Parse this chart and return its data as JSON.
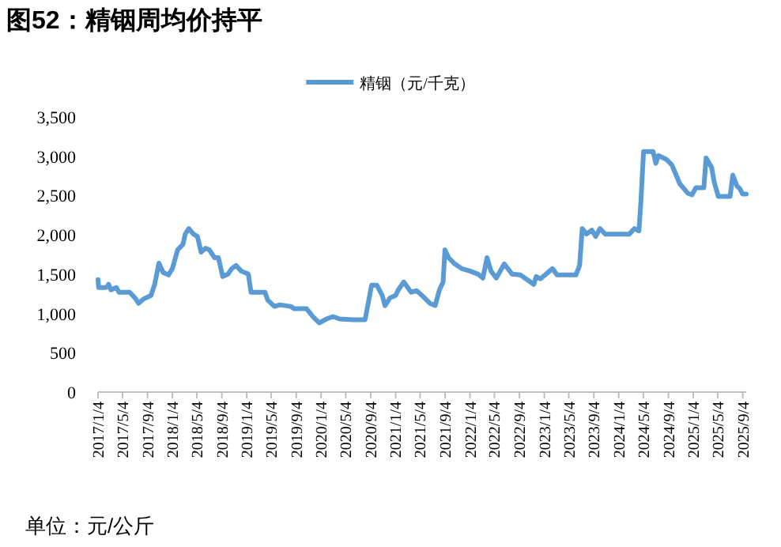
{
  "chart_data": {
    "type": "line",
    "title": "图52：精铟周均价持平",
    "annotations": [
      "单位：元/公斤"
    ],
    "legend": "top",
    "grid": false,
    "x": [
      "2017-01-04",
      "2017-01-07",
      "2017-02-13",
      "2017-02-25",
      "2017-03-08",
      "2017-04-04",
      "2017-04-17",
      "2017-06-08",
      "2017-07-04",
      "2017-07-22",
      "2017-08-13",
      "2017-09-21",
      "2017-10-09",
      "2017-10-30",
      "2017-11-20",
      "2017-12-16",
      "2018-01-04",
      "2018-01-30",
      "2018-02-25",
      "2018-03-08",
      "2018-03-26",
      "2018-04-17",
      "2018-05-07",
      "2018-05-25",
      "2018-06-16",
      "2018-07-04",
      "2018-07-30",
      "2018-08-18",
      "2018-09-08",
      "2018-10-04",
      "2018-10-22",
      "2018-11-13",
      "2018-12-08",
      "2019-01-12",
      "2019-01-25",
      "2019-04-04",
      "2019-04-17",
      "2019-05-20",
      "2019-06-16",
      "2019-08-07",
      "2019-08-25",
      "2019-10-25",
      "2019-11-25",
      "2019-12-26",
      "2020-01-30",
      "2020-03-03",
      "2020-04-04",
      "2020-06-08",
      "2020-08-07",
      "2020-09-08",
      "2020-10-04",
      "2020-10-30",
      "2020-11-13",
      "2020-12-08",
      "2021-01-04",
      "2021-01-17",
      "2021-02-13",
      "2021-03-21",
      "2021-04-17",
      "2021-05-13",
      "2021-06-21",
      "2021-07-17",
      "2021-08-07",
      "2021-08-25",
      "2021-09-03",
      "2021-09-21",
      "2021-10-17",
      "2021-11-25",
      "2022-01-04",
      "2022-02-13",
      "2022-03-08",
      "2022-03-29",
      "2022-04-17",
      "2022-05-13",
      "2022-06-21",
      "2022-07-30",
      "2022-09-08",
      "2022-10-17",
      "2022-11-13",
      "2022-11-25",
      "2022-12-16",
      "2023-02-13",
      "2023-03-08",
      "2023-06-08",
      "2023-06-26",
      "2023-07-09",
      "2023-07-30",
      "2023-08-25",
      "2023-09-13",
      "2023-10-04",
      "2023-10-30",
      "2024-02-25",
      "2024-03-21",
      "2024-04-12",
      "2024-04-22",
      "2024-05-05",
      "2024-06-21",
      "2024-07-04",
      "2024-07-17",
      "2024-08-25",
      "2024-09-21",
      "2024-10-30",
      "2024-12-08",
      "2024-12-29",
      "2025-01-17",
      "2025-02-25",
      "2025-03-08",
      "2025-04-04",
      "2025-04-17",
      "2025-05-07",
      "2025-07-04",
      "2025-07-17",
      "2025-08-07",
      "2025-08-20",
      "2025-09-03",
      "2025-09-21"
    ],
    "series": [
      {
        "name": "精铟（元/千克）",
        "color": "#5b9bd5",
        "values": [
          1430,
          1330,
          1330,
          1370,
          1300,
          1330,
          1270,
          1270,
          1200,
          1130,
          1180,
          1230,
          1370,
          1640,
          1520,
          1490,
          1570,
          1810,
          1880,
          2010,
          2080,
          2010,
          1980,
          1780,
          1830,
          1810,
          1710,
          1710,
          1470,
          1500,
          1570,
          1610,
          1540,
          1500,
          1270,
          1270,
          1170,
          1090,
          1110,
          1090,
          1060,
          1060,
          960,
          880,
          930,
          960,
          930,
          920,
          920,
          1360,
          1360,
          1230,
          1100,
          1200,
          1230,
          1300,
          1400,
          1270,
          1290,
          1230,
          1130,
          1100,
          1300,
          1400,
          1810,
          1710,
          1640,
          1570,
          1540,
          1500,
          1450,
          1710,
          1540,
          1450,
          1630,
          1500,
          1490,
          1420,
          1370,
          1470,
          1440,
          1570,
          1490,
          1490,
          1610,
          2080,
          2010,
          2060,
          1980,
          2080,
          2010,
          2010,
          2080,
          2050,
          2420,
          3060,
          3060,
          2910,
          3010,
          2960,
          2890,
          2650,
          2530,
          2510,
          2600,
          2600,
          2980,
          2860,
          2670,
          2490,
          2490,
          2760,
          2620,
          2590,
          2520,
          2520
        ]
      }
    ],
    "xlim": [
      "2017-01-04",
      "2025-09-21"
    ],
    "xticks": [
      {
        "value": "2017-01-04",
        "label": "2017/1/4"
      },
      {
        "value": "2017-05-04",
        "label": "2017/5/4"
      },
      {
        "value": "2017-09-04",
        "label": "2017/9/4"
      },
      {
        "value": "2018-01-04",
        "label": "2018/1/4"
      },
      {
        "value": "2018-05-04",
        "label": "2018/5/4"
      },
      {
        "value": "2018-09-04",
        "label": "2018/9/4"
      },
      {
        "value": "2019-01-04",
        "label": "2019/1/4"
      },
      {
        "value": "2019-05-04",
        "label": "2019/5/4"
      },
      {
        "value": "2019-09-04",
        "label": "2019/9/4"
      },
      {
        "value": "2020-01-04",
        "label": "2020/1/4"
      },
      {
        "value": "2020-05-04",
        "label": "2020/5/4"
      },
      {
        "value": "2020-09-04",
        "label": "2020/9/4"
      },
      {
        "value": "2021-01-04",
        "label": "2021/1/4"
      },
      {
        "value": "2021-05-04",
        "label": "2021/5/4"
      },
      {
        "value": "2021-09-04",
        "label": "2021/9/4"
      },
      {
        "value": "2022-01-04",
        "label": "2022/1/4"
      },
      {
        "value": "2022-05-04",
        "label": "2022/5/4"
      },
      {
        "value": "2022-09-04",
        "label": "2022/9/4"
      },
      {
        "value": "2023-01-04",
        "label": "2023/1/4"
      },
      {
        "value": "2023-05-04",
        "label": "2023/5/4"
      },
      {
        "value": "2023-09-04",
        "label": "2023/9/4"
      },
      {
        "value": "2024-01-04",
        "label": "2024/1/4"
      },
      {
        "value": "2024-05-04",
        "label": "2024/5/4"
      },
      {
        "value": "2024-09-04",
        "label": "2024/9/4"
      },
      {
        "value": "2025-01-04",
        "label": "2025/1/4"
      },
      {
        "value": "2025-05-04",
        "label": "2025/5/4"
      },
      {
        "value": "2025-09-04",
        "label": "2025/9/4"
      }
    ],
    "ylim": [
      0,
      3500
    ],
    "yticks": [
      0,
      500,
      {
        "value": 1000,
        "label": "1,000"
      },
      {
        "value": 1500,
        "label": "1,500"
      },
      {
        "value": 2000,
        "label": "2,000"
      },
      {
        "value": 2500,
        "label": "2,500"
      },
      {
        "value": 3000,
        "label": "3,000"
      },
      {
        "value": 3500,
        "label": "3,500"
      }
    ]
  }
}
